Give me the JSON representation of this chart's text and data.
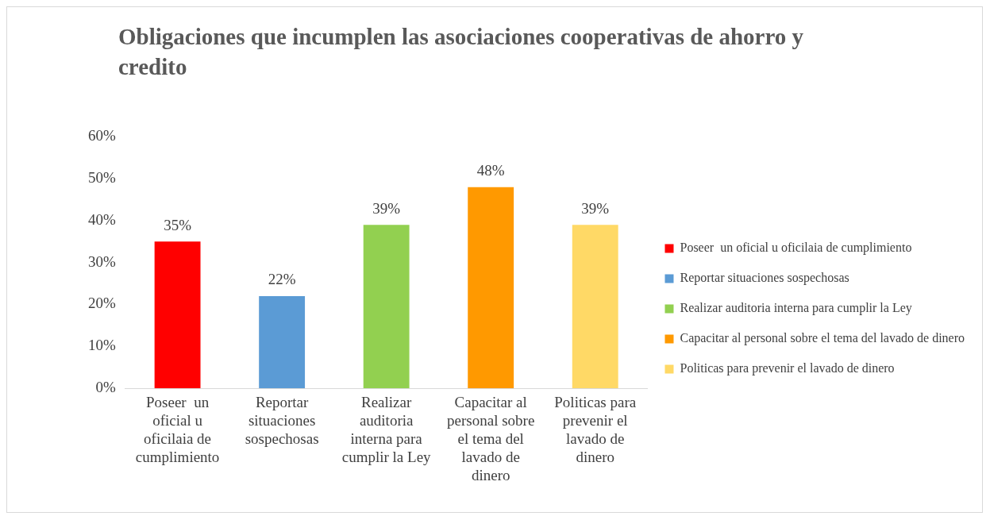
{
  "chart_data": {
    "type": "bar",
    "title": "Obligaciones que incumplen las asociaciones cooperativas de ahorro y credito",
    "categories": [
      "Poseer  un oficial u oficilaia de cumplimiento",
      "Reportar situaciones sospechosas",
      "Realizar auditoria interna para cumplir la Ley",
      "Capacitar al personal sobre el tema del lavado de dinero",
      "Politicas para prevenir el lavado de dinero"
    ],
    "series": [
      {
        "name": "Poseer  un oficial u oficilaia de cumplimiento",
        "color": "#ff0000",
        "values": [
          35,
          null,
          null,
          null,
          null
        ],
        "value_labels": [
          "35%",
          null,
          null,
          null,
          null
        ]
      },
      {
        "name": "Reportar situaciones sospechosas",
        "color": "#5b9bd5",
        "values": [
          null,
          22,
          null,
          null,
          null
        ],
        "value_labels": [
          null,
          "22%",
          null,
          null,
          null
        ]
      },
      {
        "name": "Realizar auditoria interna para cumplir la Ley",
        "color": "#92d050",
        "values": [
          null,
          null,
          39,
          null,
          null
        ],
        "value_labels": [
          null,
          null,
          "39%",
          null,
          null
        ]
      },
      {
        "name": "Capacitar al personal sobre el tema del lavado de dinero",
        "color": "#ff9900",
        "values": [
          null,
          null,
          null,
          48,
          null
        ],
        "value_labels": [
          null,
          null,
          null,
          "48%",
          null
        ]
      },
      {
        "name": "Politicas para prevenir el lavado de dinero",
        "color": "#ffd966",
        "values": [
          null,
          null,
          null,
          null,
          39
        ],
        "value_labels": [
          null,
          null,
          null,
          null,
          "39%"
        ]
      }
    ],
    "ylim": [
      0,
      60
    ],
    "yticks": [
      {
        "value": 0,
        "label": "0%"
      },
      {
        "value": 10,
        "label": "10%"
      },
      {
        "value": 20,
        "label": "20%"
      },
      {
        "value": 30,
        "label": "30%"
      },
      {
        "value": 40,
        "label": "40%"
      },
      {
        "value": 50,
        "label": "50%"
      },
      {
        "value": 60,
        "label": "60%"
      }
    ],
    "legend": "right",
    "grid": false
  }
}
